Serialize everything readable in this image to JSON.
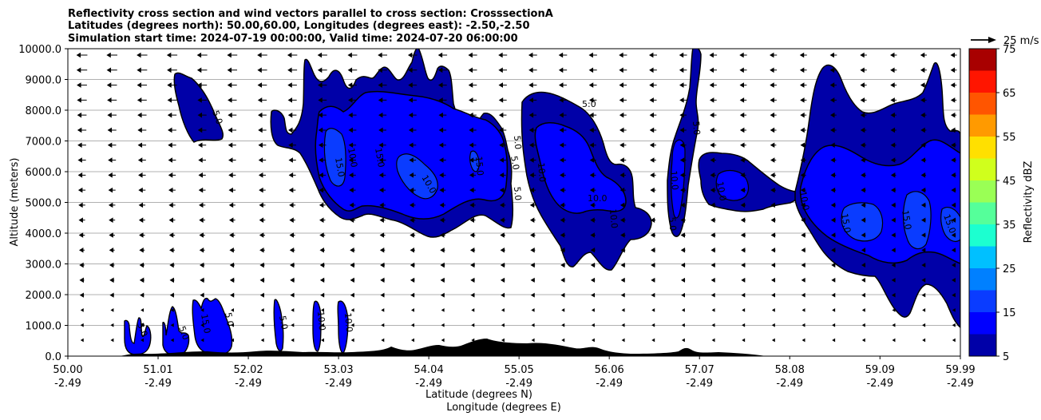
{
  "title": {
    "line1": "Reflectivity cross section and wind vectors parallel to cross section: CrosssectionA",
    "line2": "Latitudes (degrees north): 50.00,60.00, Longitudes (degrees east): -2.50,-2.50",
    "line3": "Simulation start time: 2024-07-19 00:00:00, Valid time: 2024-07-20 06:00:00"
  },
  "axes": {
    "ylabel": "Altitude (meters)",
    "xlabel_lat": "Latitude (degrees N)",
    "xlabel_lon": "Longitude (degrees E)",
    "y_ticks": [
      "0.0",
      "1000.0",
      "2000.0",
      "3000.0",
      "4000.0",
      "5000.0",
      "6000.0",
      "7000.0",
      "8000.0",
      "9000.0",
      "10000.0"
    ],
    "x_ticks_lat": [
      "50.00",
      "51.01",
      "52.02",
      "53.03",
      "54.04",
      "55.05",
      "56.06",
      "57.07",
      "58.08",
      "59.09",
      "59.99"
    ],
    "x_ticks_lon": [
      "-2.49",
      "-2.49",
      "-2.49",
      "-2.49",
      "-2.49",
      "-2.49",
      "-2.49",
      "-2.49",
      "-2.49",
      "-2.49",
      "-2.49"
    ]
  },
  "quiver_key": {
    "label": "25 m/s"
  },
  "colorbar": {
    "label": "Reflectivity dBZ",
    "tick_labels": [
      "5",
      "15",
      "25",
      "35",
      "45",
      "55",
      "65",
      "75"
    ],
    "levels": [
      5,
      10,
      15,
      20,
      25,
      30,
      35,
      40,
      45,
      50,
      55,
      60,
      65,
      70,
      75
    ],
    "colors": [
      "#0000a8",
      "#0000ff",
      "#0a3cff",
      "#0080ff",
      "#00c0ff",
      "#1cffd0",
      "#55ff9a",
      "#9aff55",
      "#d0ff1c",
      "#ffe000",
      "#ff9a00",
      "#ff5500",
      "#ff1500",
      "#a80000"
    ]
  },
  "contour_labels": [
    "5.0",
    "10.0",
    "15.0",
    "5:0"
  ],
  "chart_data": {
    "type": "heatmap",
    "title": "Reflectivity cross section and wind vectors parallel to cross section: CrosssectionA",
    "x": [
      50.0,
      51.01,
      52.02,
      53.03,
      54.04,
      55.05,
      56.06,
      57.07,
      58.08,
      59.09,
      59.99
    ],
    "xlim": [
      50.0,
      59.99
    ],
    "ylim": [
      0,
      10000
    ],
    "ylabel": "Altitude (meters)",
    "xlabel": "Latitude (degrees N)",
    "value_label": "Reflectivity dBZ",
    "vmin": 5,
    "vmax": 75,
    "grid": "horizontal",
    "cells": [
      {
        "lat_range": [
          51.3,
          51.7
        ],
        "alt_range": [
          7000,
          9200
        ],
        "max_dbz": 10
      },
      {
        "lat_range": [
          52.25,
          53.9
        ],
        "alt_range": [
          4000,
          9500
        ],
        "max_dbz": 20
      },
      {
        "lat_range": [
          53.3,
          55.0
        ],
        "alt_range": [
          3800,
          10000
        ],
        "max_dbz": 20
      },
      {
        "lat_range": [
          55.0,
          56.5
        ],
        "alt_range": [
          2700,
          8700
        ],
        "max_dbz": 15
      },
      {
        "lat_range": [
          56.65,
          56.97
        ],
        "alt_range": [
          3900,
          10000
        ],
        "max_dbz": 10
      },
      {
        "lat_range": [
          57.0,
          58.1
        ],
        "alt_range": [
          4800,
          6700
        ],
        "max_dbz": 15
      },
      {
        "lat_range": [
          58.1,
          59.99
        ],
        "alt_range": [
          1300,
          9400
        ],
        "max_dbz": 20
      },
      {
        "lat_range": [
          50.6,
          52.1
        ],
        "alt_range": [
          0,
          1900
        ],
        "max_dbz": 20
      },
      {
        "lat_range": [
          52.3,
          53.1
        ],
        "alt_range": [
          0,
          1850
        ],
        "max_dbz": 15
      }
    ],
    "wind": {
      "direction": "westward (toward decreasing latitude)",
      "reference_speed_ms": 25
    }
  }
}
